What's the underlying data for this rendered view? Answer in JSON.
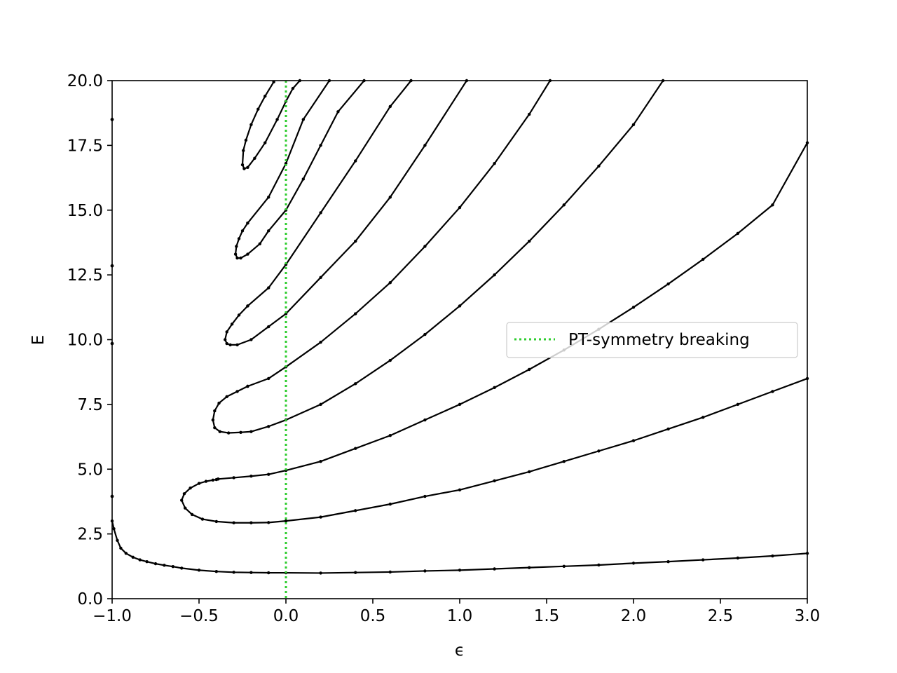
{
  "chart_data": {
    "type": "line",
    "title": "",
    "xlabel": "ϵ",
    "ylabel": "E",
    "xlim": [
      -1.0,
      3.0
    ],
    "ylim": [
      0.0,
      20.0
    ],
    "x_ticks": [
      "−1.0",
      "−0.5",
      "0.0",
      "0.5",
      "1.0",
      "1.5",
      "2.0",
      "2.5",
      "3.0"
    ],
    "y_ticks": [
      "0.0",
      "2.5",
      "5.0",
      "7.5",
      "10.0",
      "12.5",
      "15.0",
      "17.5",
      "20.0"
    ],
    "grid": false,
    "legend_position": "center-right",
    "colors": {
      "curves": "#000000",
      "marker": "#2ecc2e",
      "axes": "#000000"
    },
    "series": [
      {
        "x": [
          -1.0,
          -0.99,
          -0.97,
          -0.95,
          -0.92,
          -0.88,
          -0.84,
          -0.8,
          -0.75,
          -0.7,
          -0.65,
          -0.6,
          -0.5,
          -0.4,
          -0.3,
          -0.2,
          -0.1,
          0.0,
          0.2,
          0.4,
          0.6,
          0.8,
          1.0,
          1.2,
          1.4,
          1.6,
          1.8,
          2.0,
          2.2,
          2.4,
          2.6,
          2.8,
          3.0
        ],
        "y": [
          3.0,
          2.7,
          2.25,
          1.95,
          1.75,
          1.6,
          1.5,
          1.43,
          1.35,
          1.29,
          1.24,
          1.18,
          1.1,
          1.05,
          1.02,
          1.01,
          1.0,
          1.0,
          0.99,
          1.01,
          1.03,
          1.07,
          1.1,
          1.15,
          1.2,
          1.25,
          1.3,
          1.37,
          1.43,
          1.5,
          1.57,
          1.65,
          1.75
        ]
      },
      {
        "x": [
          -0.39,
          -0.4,
          -0.42,
          -0.46,
          -0.5,
          -0.55,
          -0.585,
          -0.6,
          -0.58,
          -0.54,
          -0.48,
          -0.4,
          -0.3,
          -0.2,
          -0.1,
          0.0,
          0.2,
          0.4,
          0.6,
          0.8,
          1.0,
          1.2,
          1.4,
          1.6,
          1.8,
          2.0,
          2.2,
          2.4,
          2.6,
          2.8,
          3.0
        ],
        "y": [
          4.62,
          4.6,
          4.58,
          4.53,
          4.45,
          4.27,
          4.05,
          3.8,
          3.5,
          3.25,
          3.07,
          2.98,
          2.93,
          2.93,
          2.94,
          3.0,
          3.15,
          3.4,
          3.65,
          3.95,
          4.2,
          4.55,
          4.9,
          5.3,
          5.7,
          6.1,
          6.55,
          7.0,
          7.5,
          8.0,
          8.5
        ]
      },
      {
        "x": [
          -0.39,
          -0.3,
          -0.2,
          -0.1,
          0.0,
          0.2,
          0.4,
          0.6,
          0.8,
          1.0,
          1.2,
          1.4,
          1.6,
          1.8,
          2.0,
          2.2,
          2.4,
          2.6,
          2.8,
          3.0
        ],
        "y": [
          4.62,
          4.67,
          4.73,
          4.8,
          4.95,
          5.3,
          5.8,
          6.3,
          6.9,
          7.5,
          8.15,
          8.85,
          9.6,
          10.4,
          11.25,
          12.15,
          13.1,
          14.1,
          15.2,
          17.6
        ]
      },
      {
        "x": [
          -0.22,
          -0.28,
          -0.34,
          -0.385,
          -0.41,
          -0.42,
          -0.41,
          -0.38,
          -0.33,
          -0.26,
          -0.2,
          -0.1,
          0.0,
          0.2,
          0.4,
          0.6,
          0.8,
          1.0,
          1.2,
          1.4,
          1.6,
          1.8,
          2.0,
          2.17
        ],
        "y": [
          8.2,
          8.0,
          7.8,
          7.55,
          7.25,
          6.9,
          6.6,
          6.45,
          6.4,
          6.42,
          6.45,
          6.65,
          6.9,
          7.5,
          8.3,
          9.2,
          10.2,
          11.3,
          12.5,
          13.8,
          15.2,
          16.7,
          18.3,
          20.0
        ]
      },
      {
        "x": [
          -0.22,
          -0.1,
          0.0,
          0.2,
          0.4,
          0.6,
          0.8,
          1.0,
          1.2,
          1.4,
          1.52
        ],
        "y": [
          8.2,
          8.5,
          8.95,
          9.9,
          11.0,
          12.2,
          13.6,
          15.1,
          16.8,
          18.7,
          20.0
        ]
      },
      {
        "x": [
          -0.22,
          -0.27,
          -0.31,
          -0.34,
          -0.35,
          -0.34,
          -0.32,
          -0.28,
          -0.2,
          -0.1,
          0.0,
          0.2,
          0.4,
          0.6,
          0.8,
          1.04
        ],
        "y": [
          11.3,
          10.95,
          10.6,
          10.3,
          10.0,
          9.85,
          9.8,
          9.8,
          10.0,
          10.5,
          11.0,
          12.4,
          13.8,
          15.5,
          17.5,
          20.0
        ]
      },
      {
        "x": [
          -0.22,
          -0.1,
          0.0,
          0.2,
          0.4,
          0.6,
          0.72
        ],
        "y": [
          11.3,
          12.0,
          12.9,
          14.9,
          16.9,
          19.0,
          20.0
        ]
      },
      {
        "x": [
          -0.22,
          -0.25,
          -0.27,
          -0.285,
          -0.29,
          -0.28,
          -0.26,
          -0.22,
          -0.15,
          -0.1,
          0.0,
          0.1,
          0.2,
          0.3,
          0.45
        ],
        "y": [
          14.5,
          14.2,
          13.9,
          13.6,
          13.3,
          13.15,
          13.15,
          13.3,
          13.7,
          14.2,
          15.0,
          16.2,
          17.5,
          18.8,
          20.0
        ]
      },
      {
        "x": [
          -0.22,
          -0.1,
          0.0,
          0.1,
          0.25
        ],
        "y": [
          14.5,
          15.5,
          16.8,
          18.5,
          20.0
        ]
      },
      {
        "x": [
          -0.07,
          -0.12,
          -0.16,
          -0.2,
          -0.23,
          -0.245,
          -0.25,
          -0.24,
          -0.22,
          -0.18,
          -0.12,
          -0.05,
          0.0,
          0.04,
          0.08
        ],
        "y": [
          19.95,
          19.4,
          18.9,
          18.3,
          17.7,
          17.3,
          16.75,
          16.6,
          16.65,
          17.0,
          17.6,
          18.5,
          19.2,
          19.7,
          20.0
        ]
      }
    ],
    "edge_points": {
      "x": [
        -1.0,
        -1.0,
        -1.0,
        -1.0
      ],
      "y": [
        18.5,
        12.85,
        9.85,
        3.95
      ]
    },
    "vline": {
      "x": 0.0,
      "name": "PT-symmetry breaking",
      "style": "dotted"
    }
  }
}
